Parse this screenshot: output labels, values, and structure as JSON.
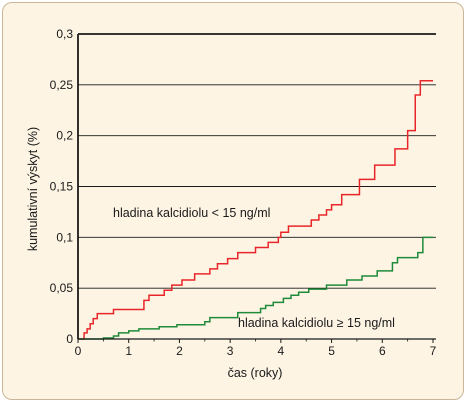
{
  "chart_data": {
    "type": "line",
    "xlabel": "čas (roky)",
    "ylabel": "kumulativní výskyt (%)",
    "xlim": [
      0,
      7
    ],
    "ylim": [
      0,
      0.3
    ],
    "x_ticks": [
      "0",
      "1",
      "2",
      "3",
      "4",
      "5",
      "6",
      "7"
    ],
    "y_ticks": [
      "0",
      "0,05",
      "0,1",
      "0,15",
      "0,2",
      "0,25",
      "0,3"
    ],
    "grid": "horizontal",
    "colors": {
      "red": "#e8262a",
      "green": "#1e8a3a"
    },
    "annotations": {
      "red": "hladina kalcidiolu < 15 ng/ml",
      "green": "hladina kalcidiolu ≥ 15 ng/ml"
    },
    "series": [
      {
        "color": "red",
        "x": [
          0,
          0.12,
          0.18,
          0.24,
          0.3,
          0.38,
          0.7,
          1.3,
          1.4,
          1.7,
          1.85,
          2.05,
          2.3,
          2.6,
          2.75,
          2.95,
          3.15,
          3.5,
          3.75,
          3.95,
          4.0,
          4.15,
          4.6,
          4.75,
          4.9,
          5.0,
          5.2,
          5.55,
          5.85,
          6.25,
          6.5,
          6.65,
          6.75,
          7.0
        ],
        "y": [
          0,
          0.006,
          0.01,
          0.015,
          0.02,
          0.025,
          0.029,
          0.038,
          0.043,
          0.048,
          0.053,
          0.058,
          0.064,
          0.069,
          0.074,
          0.079,
          0.085,
          0.09,
          0.095,
          0.1,
          0.105,
          0.111,
          0.117,
          0.122,
          0.127,
          0.132,
          0.142,
          0.157,
          0.171,
          0.187,
          0.205,
          0.24,
          0.254,
          0.254
        ]
      },
      {
        "color": "green",
        "x": [
          0,
          0.5,
          0.7,
          0.8,
          1.0,
          1.2,
          1.6,
          1.95,
          2.5,
          2.6,
          3.15,
          3.6,
          3.7,
          3.85,
          4.05,
          4.2,
          4.35,
          4.55,
          4.9,
          5.3,
          5.6,
          5.9,
          6.2,
          6.3,
          6.7,
          6.8,
          7.0
        ],
        "y": [
          0,
          0.001,
          0.003,
          0.006,
          0.008,
          0.01,
          0.012,
          0.014,
          0.017,
          0.021,
          0.026,
          0.03,
          0.033,
          0.036,
          0.04,
          0.043,
          0.046,
          0.049,
          0.053,
          0.058,
          0.062,
          0.067,
          0.075,
          0.08,
          0.085,
          0.1,
          0.1
        ]
      }
    ]
  }
}
